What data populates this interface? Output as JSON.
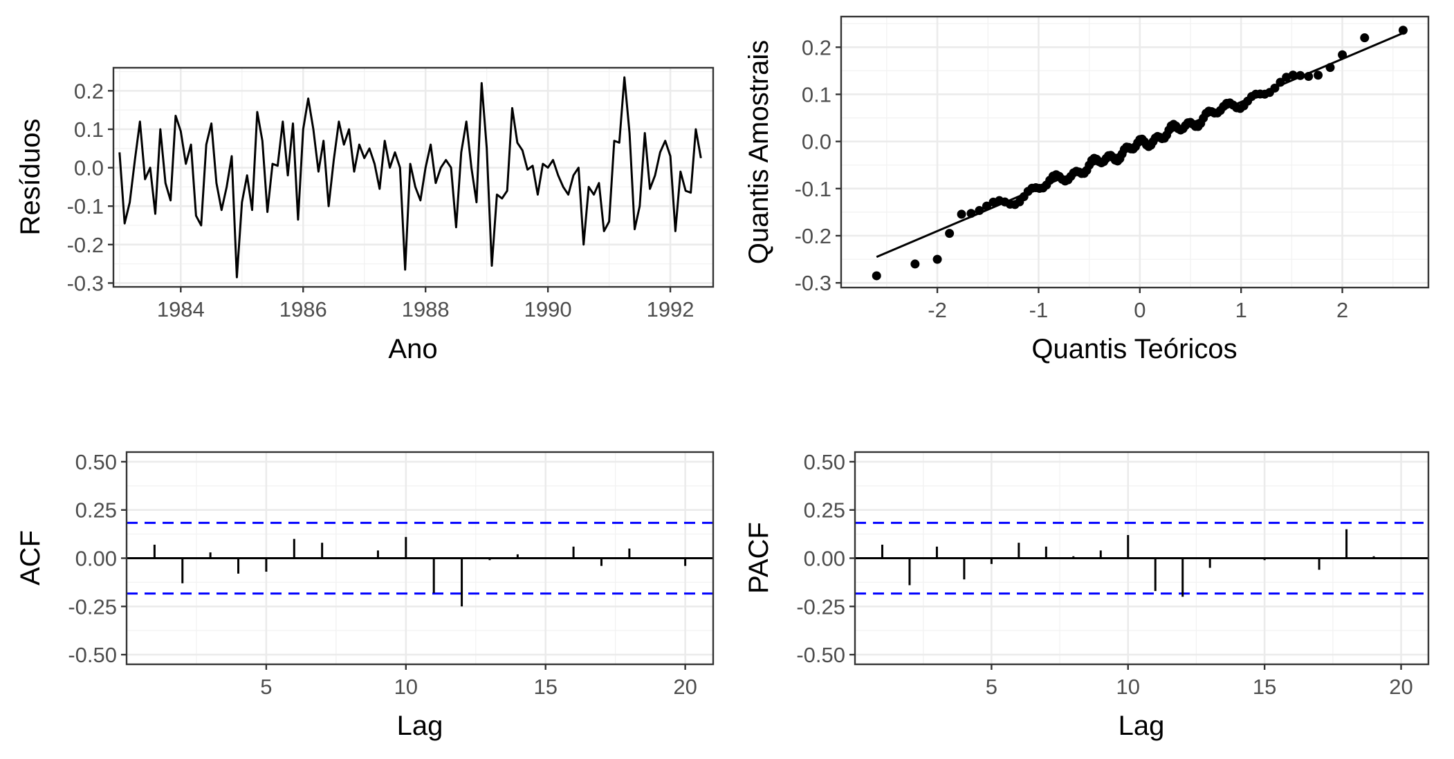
{
  "chart_data": [
    {
      "type": "line",
      "id": "residuals",
      "xlabel": "Ano",
      "ylabel": "Resíduos",
      "xlim": [
        1982.9,
        1992.7
      ],
      "ylim": [
        -0.31,
        0.26
      ],
      "xticks": [
        1984,
        1986,
        1988,
        1990,
        1992
      ],
      "xtick_labels": [
        "1984",
        "1986",
        "1988",
        "1990",
        "1992"
      ],
      "yticks": [
        -0.3,
        -0.2,
        -0.1,
        0.0,
        0.1,
        0.2
      ],
      "ytick_labels": [
        "-0.3",
        "-0.2",
        "-0.1",
        "0.0",
        "0.1",
        "0.2"
      ],
      "grid": true,
      "color": "#000000",
      "x_start": 1983.0,
      "x_step": 0.08333333,
      "values": [
        0.04,
        -0.145,
        -0.09,
        0.02,
        0.12,
        -0.03,
        0.0,
        -0.12,
        0.1,
        -0.04,
        -0.085,
        0.135,
        0.095,
        0.01,
        0.06,
        -0.125,
        -0.15,
        0.06,
        0.115,
        -0.04,
        -0.11,
        -0.05,
        0.03,
        -0.285,
        -0.09,
        -0.02,
        -0.11,
        0.145,
        0.07,
        -0.115,
        0.01,
        0.005,
        0.12,
        -0.02,
        0.115,
        -0.135,
        0.1,
        0.18,
        0.1,
        -0.01,
        0.07,
        -0.1,
        0.02,
        0.12,
        0.06,
        0.1,
        -0.01,
        0.06,
        0.025,
        0.05,
        0.01,
        -0.055,
        0.07,
        0.0,
        0.04,
        0.0,
        -0.265,
        0.01,
        -0.05,
        -0.085,
        0.0,
        0.06,
        -0.04,
        0.0,
        0.02,
        0.0,
        -0.155,
        0.04,
        0.12,
        0.0,
        -0.09,
        0.22,
        0.05,
        -0.255,
        -0.07,
        -0.08,
        -0.06,
        0.155,
        0.065,
        0.045,
        -0.005,
        0.005,
        -0.07,
        0.01,
        0.0,
        0.02,
        -0.02,
        -0.05,
        -0.07,
        -0.02,
        0.0,
        -0.2,
        -0.05,
        -0.07,
        -0.04,
        -0.165,
        -0.14,
        0.07,
        0.065,
        0.235,
        0.09,
        -0.16,
        -0.1,
        0.09,
        -0.055,
        -0.02,
        0.04,
        0.07,
        0.03,
        -0.165,
        -0.01,
        -0.06,
        -0.065,
        0.1,
        0.025
      ]
    },
    {
      "type": "scatter",
      "id": "qqplot",
      "xlabel": "Quantis Teóricos",
      "ylabel": "Quantis Amostrais",
      "xlim": [
        -2.95,
        2.85
      ],
      "ylim": [
        -0.31,
        0.265
      ],
      "xticks": [
        -2,
        -1,
        0,
        1,
        2
      ],
      "xtick_labels": [
        "-2",
        "-1",
        "0",
        "1",
        "2"
      ],
      "yticks": [
        -0.3,
        -0.2,
        -0.1,
        0.0,
        0.1,
        0.2
      ],
      "ytick_labels": [
        "-0.3",
        "-0.2",
        "-0.1",
        "0.0",
        "0.1",
        "0.2"
      ],
      "grid": true,
      "color": "#000000",
      "outliers_low": [
        [
          -2.6,
          -0.285
        ],
        [
          -2.22,
          -0.26
        ],
        [
          -2.0,
          -0.25
        ],
        [
          -1.88,
          -0.195
        ]
      ],
      "outliers_high": [
        [
          1.88,
          0.157
        ],
        [
          2.0,
          0.184
        ],
        [
          2.22,
          0.22
        ],
        [
          2.6,
          0.236
        ]
      ],
      "qq_line": {
        "x": [
          -2.6,
          2.6
        ],
        "y": [
          -0.245,
          0.23
        ]
      },
      "n_points": 115
    },
    {
      "type": "bar",
      "id": "acf",
      "xlabel": "Lag",
      "ylabel": "ACF",
      "xlim": [
        0,
        21
      ],
      "ylim": [
        -0.55,
        0.55
      ],
      "xticks": [
        5,
        10,
        15,
        20
      ],
      "xtick_labels": [
        "5",
        "10",
        "15",
        "20"
      ],
      "yticks": [
        -0.5,
        -0.25,
        0.0,
        0.25,
        0.5
      ],
      "ytick_labels": [
        "-0.50",
        "-0.25",
        "0.00",
        "0.25",
        "0.50"
      ],
      "grid": true,
      "conf_limit": 0.183,
      "conf_color": "#0000FF",
      "lags": [
        1,
        2,
        3,
        4,
        5,
        6,
        7,
        8,
        9,
        10,
        11,
        12,
        13,
        14,
        15,
        16,
        17,
        18,
        19,
        20
      ],
      "values": [
        0.07,
        -0.13,
        0.03,
        -0.08,
        -0.07,
        0.1,
        0.08,
        0.0,
        0.04,
        0.11,
        -0.18,
        -0.25,
        -0.01,
        0.02,
        0.0,
        0.06,
        -0.04,
        0.05,
        0.0,
        -0.04
      ]
    },
    {
      "type": "bar",
      "id": "pacf",
      "xlabel": "Lag",
      "ylabel": "PACF",
      "xlim": [
        0,
        21
      ],
      "ylim": [
        -0.55,
        0.55
      ],
      "xticks": [
        5,
        10,
        15,
        20
      ],
      "xtick_labels": [
        "5",
        "10",
        "15",
        "20"
      ],
      "yticks": [
        -0.5,
        -0.25,
        0.0,
        0.25,
        0.5
      ],
      "ytick_labels": [
        "-0.50",
        "-0.25",
        "0.00",
        "0.25",
        "0.50"
      ],
      "grid": true,
      "conf_limit": 0.183,
      "conf_color": "#0000FF",
      "lags": [
        1,
        2,
        3,
        4,
        5,
        6,
        7,
        8,
        9,
        10,
        11,
        12,
        13,
        14,
        15,
        16,
        17,
        18,
        19,
        20
      ],
      "values": [
        0.07,
        -0.14,
        0.06,
        -0.11,
        -0.03,
        0.08,
        0.06,
        0.01,
        0.04,
        0.12,
        -0.17,
        -0.2,
        -0.05,
        0.0,
        -0.01,
        0.0,
        -0.06,
        0.15,
        0.01,
        0.0
      ]
    }
  ]
}
